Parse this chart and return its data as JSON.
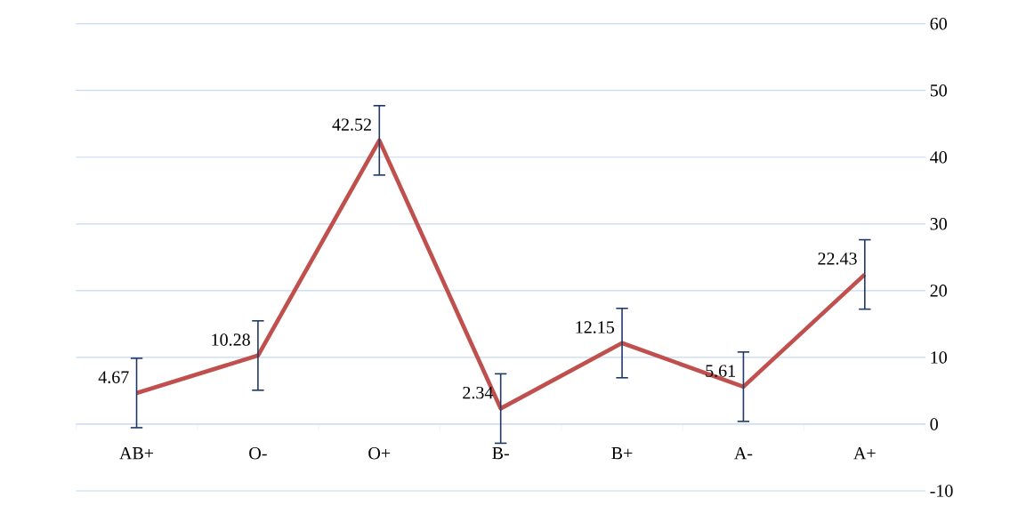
{
  "chart_data": {
    "type": "line",
    "categories": [
      "AB+",
      "O-",
      "O+",
      "B-",
      "B+",
      "A-",
      "A+"
    ],
    "series": [
      {
        "color": "#c0504d",
        "values": [
          4.67,
          10.28,
          42.52,
          2.34,
          12.15,
          5.61,
          22.43
        ],
        "errors": [
          5.2,
          5.2,
          5.2,
          5.2,
          5.2,
          5.2,
          5.2
        ],
        "value_labels": [
          "4.67",
          "10.28",
          "42.52",
          "2.34",
          "12.15",
          "5.61",
          "22.43"
        ]
      }
    ],
    "ylim": [
      -10,
      60
    ],
    "yticks": [
      -10,
      0,
      10,
      20,
      30,
      40,
      50,
      60
    ],
    "grid": "y",
    "marker": "none",
    "line_style": "solid"
  }
}
